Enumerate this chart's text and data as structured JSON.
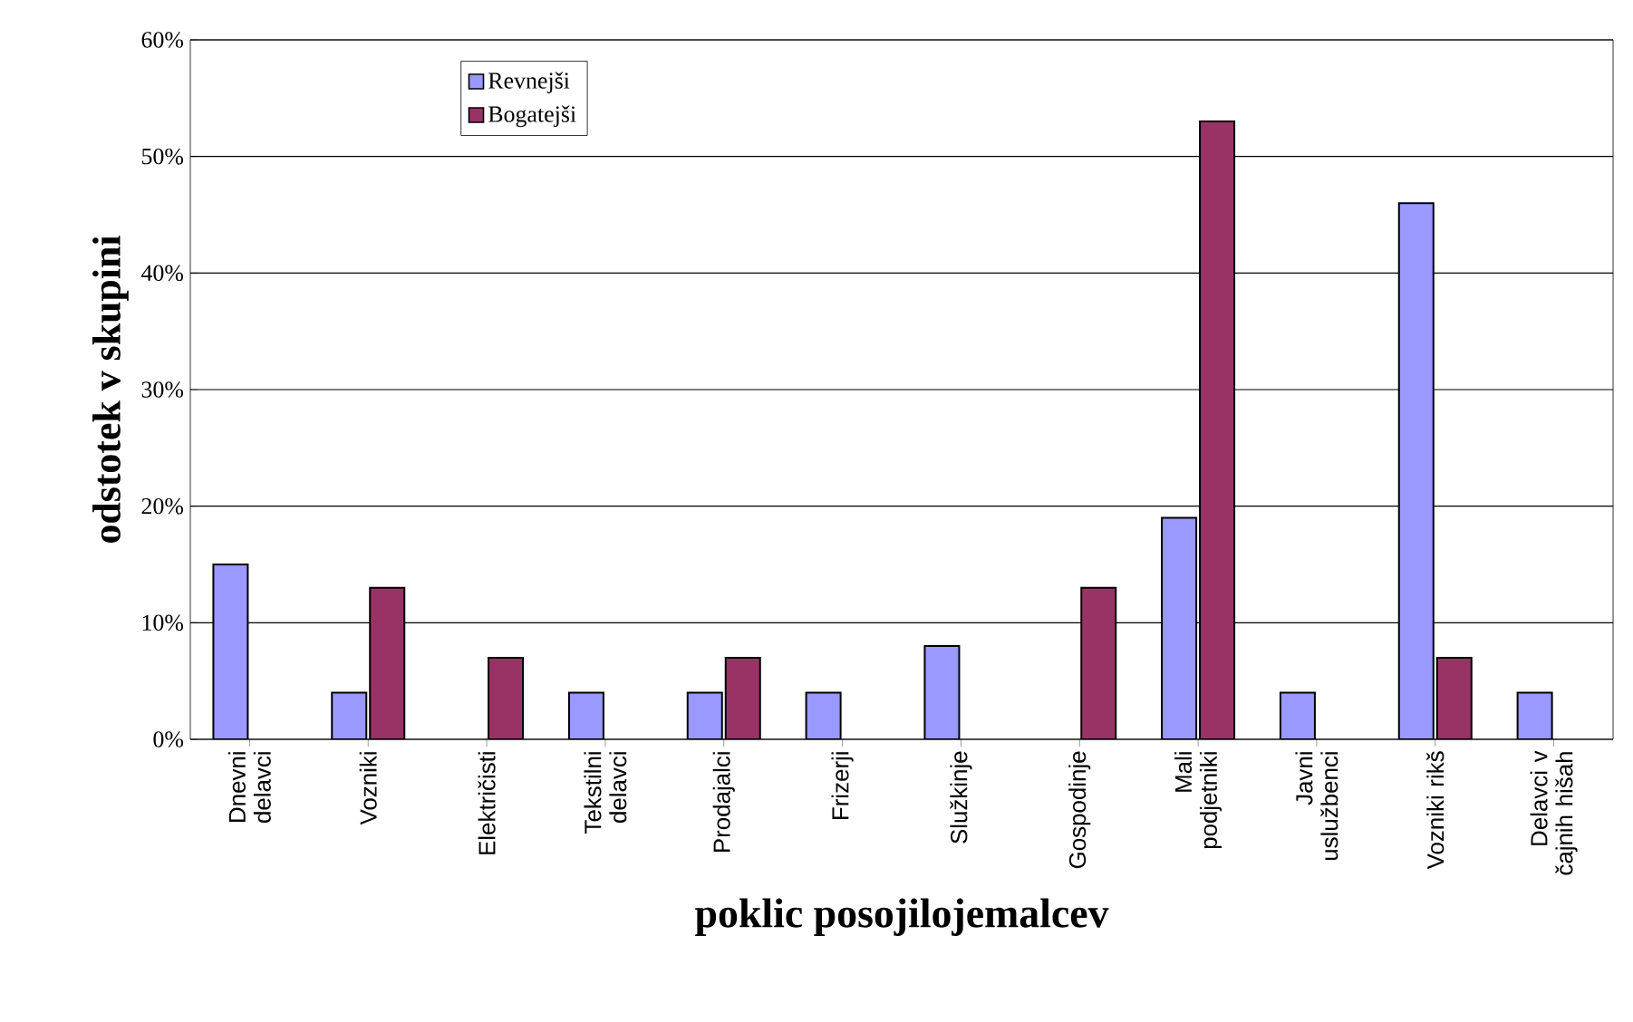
{
  "chart_data": {
    "type": "bar",
    "xlabel": "poklic posojilojemalcev",
    "ylabel": "odstotek v skupini",
    "categories": [
      "Dnevni delavci",
      "Vozniki",
      "Električisti",
      "Tekstilni delavci",
      "Prodajalci",
      "Frizerji",
      "Služkinje",
      "Gospodinje",
      "Mali podjetniki",
      "Javni uslužbenci",
      "Vozniki rikš",
      "Delavci v čajnih hišah"
    ],
    "series": [
      {
        "name": "Revnejši",
        "color": "#9999ff",
        "values": [
          15,
          4,
          null,
          4,
          4,
          4,
          8,
          null,
          19,
          4,
          46,
          4
        ]
      },
      {
        "name": "Bogatejši",
        "color": "#993366",
        "values": [
          null,
          13,
          7,
          null,
          7,
          null,
          null,
          13,
          53,
          null,
          7,
          null
        ]
      }
    ],
    "ylim": [
      0,
      60
    ],
    "yticks": [
      {
        "value": 0,
        "label": "0%"
      },
      {
        "value": 10,
        "label": "10%"
      },
      {
        "value": 20,
        "label": "20%"
      },
      {
        "value": 30,
        "label": "30%"
      },
      {
        "value": 40,
        "label": "40%"
      },
      {
        "value": 50,
        "label": "50%"
      },
      {
        "value": 60,
        "label": "60%"
      }
    ],
    "grid": "y",
    "legend": "top left"
  }
}
